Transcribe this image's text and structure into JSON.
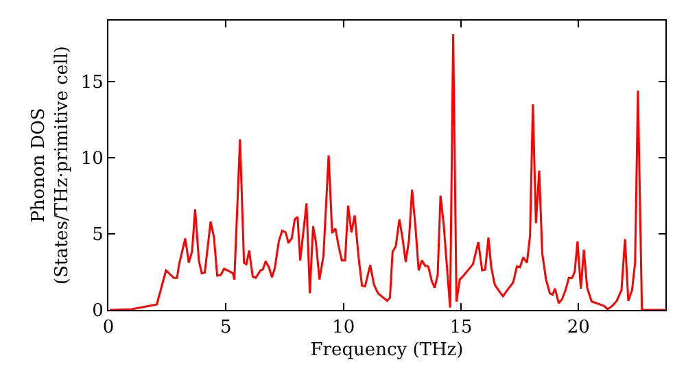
{
  "chart_data": {
    "type": "line",
    "xlabel": "Frequency (THz)",
    "ylabel": "Phonon DOS\n(States/THz·primitive cell)",
    "xlim": [
      0,
      23.7
    ],
    "ylim": [
      0,
      19
    ],
    "xticks": [
      0,
      5,
      10,
      15,
      20
    ],
    "yticks": [
      0,
      5,
      10,
      15
    ],
    "grid": false,
    "marker": "none",
    "line_style": "solid",
    "series": [
      {
        "color": "#ff0000",
        "x": [
          0.06,
          1.0,
          2.06,
          2.45,
          2.78,
          2.92,
          3.01,
          3.27,
          3.42,
          3.56,
          3.69,
          3.85,
          3.97,
          4.1,
          4.35,
          4.49,
          4.63,
          4.78,
          4.92,
          5.13,
          5.3,
          5.36,
          5.6,
          5.77,
          5.87,
          5.99,
          6.14,
          6.27,
          6.47,
          6.57,
          6.69,
          6.83,
          6.96,
          7.08,
          7.25,
          7.39,
          7.54,
          7.66,
          7.8,
          7.93,
          8.05,
          8.16,
          8.43,
          8.57,
          8.71,
          8.83,
          8.98,
          9.15,
          9.37,
          9.52,
          9.66,
          9.78,
          9.93,
          10.07,
          10.2,
          10.34,
          10.48,
          10.65,
          10.79,
          10.92,
          11.14,
          11.3,
          11.47,
          11.66,
          11.86,
          11.98,
          12.09,
          12.23,
          12.38,
          12.51,
          12.65,
          12.79,
          12.92,
          13.07,
          13.2,
          13.34,
          13.48,
          13.61,
          13.76,
          13.88,
          14.01,
          14.13,
          14.27,
          14.43,
          14.54,
          14.67,
          14.81,
          14.95,
          15.08,
          15.32,
          15.51,
          15.74,
          15.9,
          16.03,
          16.17,
          16.29,
          16.44,
          16.64,
          16.79,
          16.97,
          17.22,
          17.38,
          17.51,
          17.65,
          17.81,
          17.94,
          18.06,
          18.19,
          18.33,
          18.46,
          18.62,
          18.78,
          18.9,
          19.0,
          19.16,
          19.3,
          19.45,
          19.59,
          19.73,
          19.84,
          19.96,
          20.1,
          20.23,
          20.37,
          20.56,
          20.85,
          21.1,
          21.24,
          21.43,
          21.63,
          21.83,
          21.98,
          22.12,
          22.28,
          22.41,
          22.53,
          22.7,
          23.67
        ],
        "values": [
          0,
          0.05,
          0.36,
          2.6,
          2.1,
          2.1,
          3.0,
          4.7,
          3.1,
          3.85,
          6.6,
          3.25,
          2.4,
          2.45,
          5.8,
          4.8,
          2.25,
          2.3,
          2.7,
          2.55,
          2.4,
          2.0,
          11.2,
          3.1,
          3.0,
          3.9,
          2.2,
          2.1,
          2.6,
          2.65,
          3.2,
          2.8,
          2.15,
          2.75,
          4.5,
          5.2,
          5.1,
          4.4,
          4.7,
          5.95,
          6.1,
          3.25,
          7.0,
          1.1,
          5.5,
          4.45,
          2.0,
          3.55,
          10.15,
          5.05,
          5.35,
          4.3,
          3.25,
          3.25,
          6.85,
          5.1,
          6.2,
          3.4,
          1.6,
          1.55,
          2.95,
          1.65,
          1.1,
          0.85,
          0.6,
          0.8,
          3.8,
          4.2,
          5.95,
          4.75,
          3.15,
          4.6,
          7.9,
          5.35,
          2.6,
          3.25,
          2.9,
          2.85,
          1.9,
          1.45,
          2.3,
          7.5,
          5.55,
          2.3,
          0.15,
          18.1,
          0.55,
          2.0,
          2.2,
          2.65,
          3.0,
          4.45,
          2.6,
          2.65,
          4.75,
          2.8,
          1.65,
          1.2,
          0.9,
          1.3,
          1.8,
          2.85,
          2.8,
          3.45,
          3.1,
          4.9,
          13.5,
          5.7,
          9.15,
          3.7,
          2.0,
          1.1,
          1.0,
          1.4,
          0.45,
          0.7,
          1.3,
          2.1,
          2.1,
          2.5,
          4.5,
          1.4,
          3.95,
          1.45,
          0.55,
          0.4,
          0.25,
          0.05,
          0.25,
          0.6,
          1.3,
          4.65,
          0.6,
          1.3,
          3.1,
          14.4,
          0,
          0
        ]
      }
    ]
  }
}
